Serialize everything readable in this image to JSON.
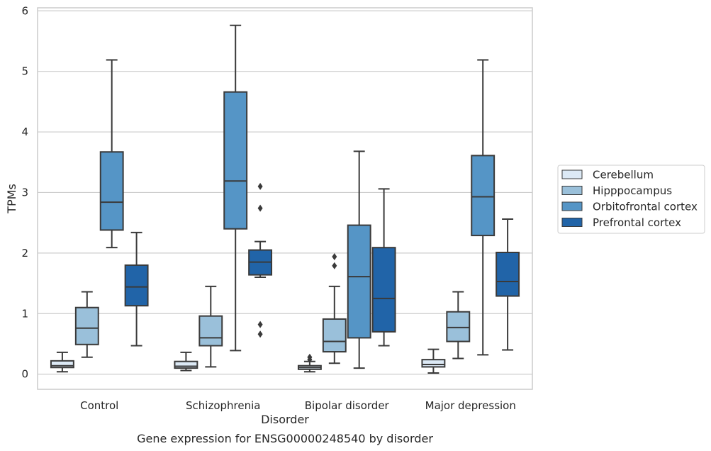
{
  "chart_data": {
    "type": "box",
    "caption": "Gene expression for ENSG00000248540 by disorder",
    "xlabel": "Disorder",
    "ylabel": "TPMs",
    "ylim": [
      -0.25,
      6.05
    ],
    "yticks": [
      0,
      1,
      2,
      3,
      4,
      5,
      6
    ],
    "grid": "horizontal",
    "legend_position": "right",
    "categories": [
      "Control",
      "Schizophrenia",
      "Bipolar disorder",
      "Major depression"
    ],
    "series": [
      {
        "name": "Cerebellum",
        "color": "#dce9f5",
        "boxes": [
          {
            "q1": 0.11,
            "median": 0.14,
            "q3": 0.22,
            "whisker_low": 0.04,
            "whisker_high": 0.36,
            "outliers": []
          },
          {
            "q1": 0.1,
            "median": 0.13,
            "q3": 0.21,
            "whisker_low": 0.06,
            "whisker_high": 0.36,
            "outliers": []
          },
          {
            "q1": 0.08,
            "median": 0.11,
            "q3": 0.14,
            "whisker_low": 0.04,
            "whisker_high": 0.21,
            "outliers": [
              0.24,
              0.28
            ]
          },
          {
            "q1": 0.12,
            "median": 0.16,
            "q3": 0.24,
            "whisker_low": 0.02,
            "whisker_high": 0.41,
            "outliers": []
          }
        ]
      },
      {
        "name": "Hipppocampus",
        "color": "#9ac0da",
        "boxes": [
          {
            "q1": 0.49,
            "median": 0.76,
            "q3": 1.1,
            "whisker_low": 0.28,
            "whisker_high": 1.36,
            "outliers": []
          },
          {
            "q1": 0.47,
            "median": 0.6,
            "q3": 0.96,
            "whisker_low": 0.12,
            "whisker_high": 1.45,
            "outliers": []
          },
          {
            "q1": 0.37,
            "median": 0.54,
            "q3": 0.91,
            "whisker_low": 0.18,
            "whisker_high": 1.45,
            "outliers": [
              1.79,
              1.94
            ]
          },
          {
            "q1": 0.54,
            "median": 0.77,
            "q3": 1.03,
            "whisker_low": 0.26,
            "whisker_high": 1.36,
            "outliers": []
          }
        ]
      },
      {
        "name": "Orbitofrontal cortex",
        "color": "#5595c6",
        "boxes": [
          {
            "q1": 2.38,
            "median": 2.84,
            "q3": 3.67,
            "whisker_low": 2.09,
            "whisker_high": 5.19,
            "outliers": []
          },
          {
            "q1": 2.4,
            "median": 3.19,
            "q3": 4.66,
            "whisker_low": 0.39,
            "whisker_high": 5.76,
            "outliers": []
          },
          {
            "q1": 0.6,
            "median": 1.61,
            "q3": 2.46,
            "whisker_low": 0.1,
            "whisker_high": 3.68,
            "outliers": []
          },
          {
            "q1": 2.29,
            "median": 2.93,
            "q3": 3.61,
            "whisker_low": 0.32,
            "whisker_high": 5.19,
            "outliers": []
          }
        ]
      },
      {
        "name": "Prefrontal cortex",
        "color": "#2164a8",
        "boxes": [
          {
            "q1": 1.13,
            "median": 1.44,
            "q3": 1.8,
            "whisker_low": 0.47,
            "whisker_high": 2.34,
            "outliers": []
          },
          {
            "q1": 1.64,
            "median": 1.85,
            "q3": 2.05,
            "whisker_low": 1.6,
            "whisker_high": 2.19,
            "outliers": [
              3.1,
              2.74,
              0.82,
              0.66
            ]
          },
          {
            "q1": 0.7,
            "median": 1.25,
            "q3": 2.09,
            "whisker_low": 0.47,
            "whisker_high": 3.06,
            "outliers": []
          },
          {
            "q1": 1.29,
            "median": 1.53,
            "q3": 2.01,
            "whisker_low": 0.4,
            "whisker_high": 2.56,
            "outliers": []
          }
        ]
      }
    ]
  }
}
